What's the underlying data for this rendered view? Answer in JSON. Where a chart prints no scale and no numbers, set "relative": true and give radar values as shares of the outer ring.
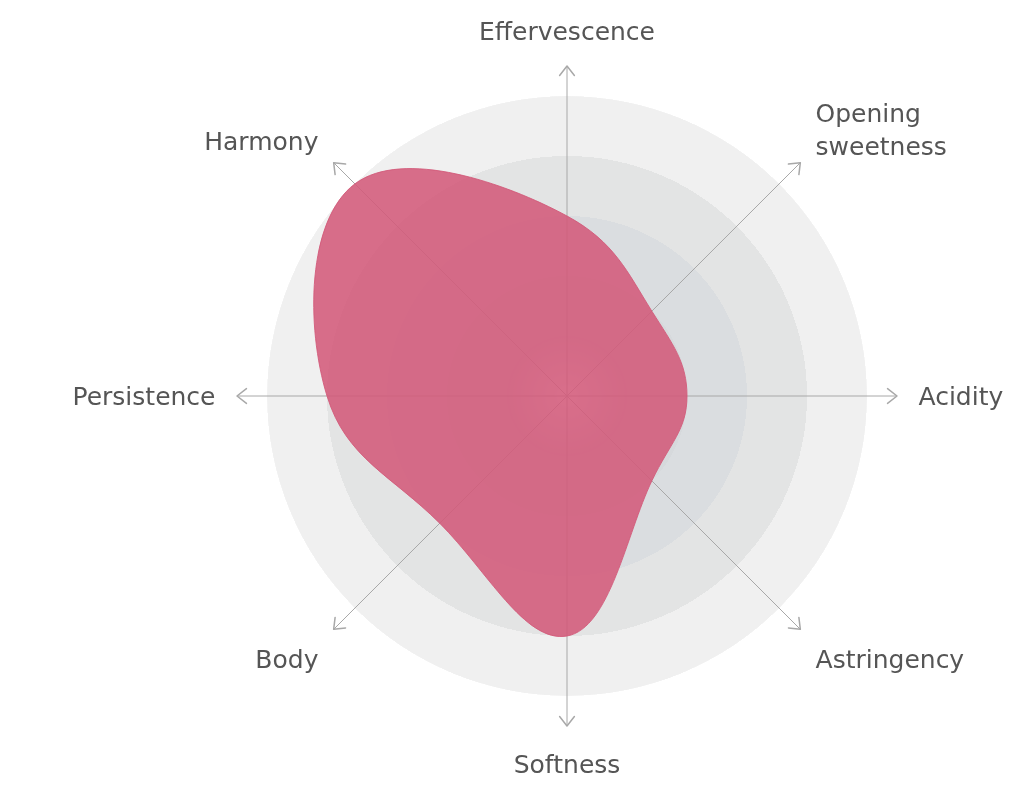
{
  "chart_data": {
    "type": "radar",
    "categories": [
      "Effervescence",
      "Opening sweetness",
      "Acidity",
      "Astringency",
      "Softness",
      "Body",
      "Persistence",
      "Harmony"
    ],
    "series": [
      {
        "color": "#d35a7a",
        "values": [
          0.6,
          0.4,
          0.4,
          0.4,
          0.8,
          0.6,
          0.8,
          1.0
        ]
      }
    ],
    "relative": true,
    "grid": true
  }
}
